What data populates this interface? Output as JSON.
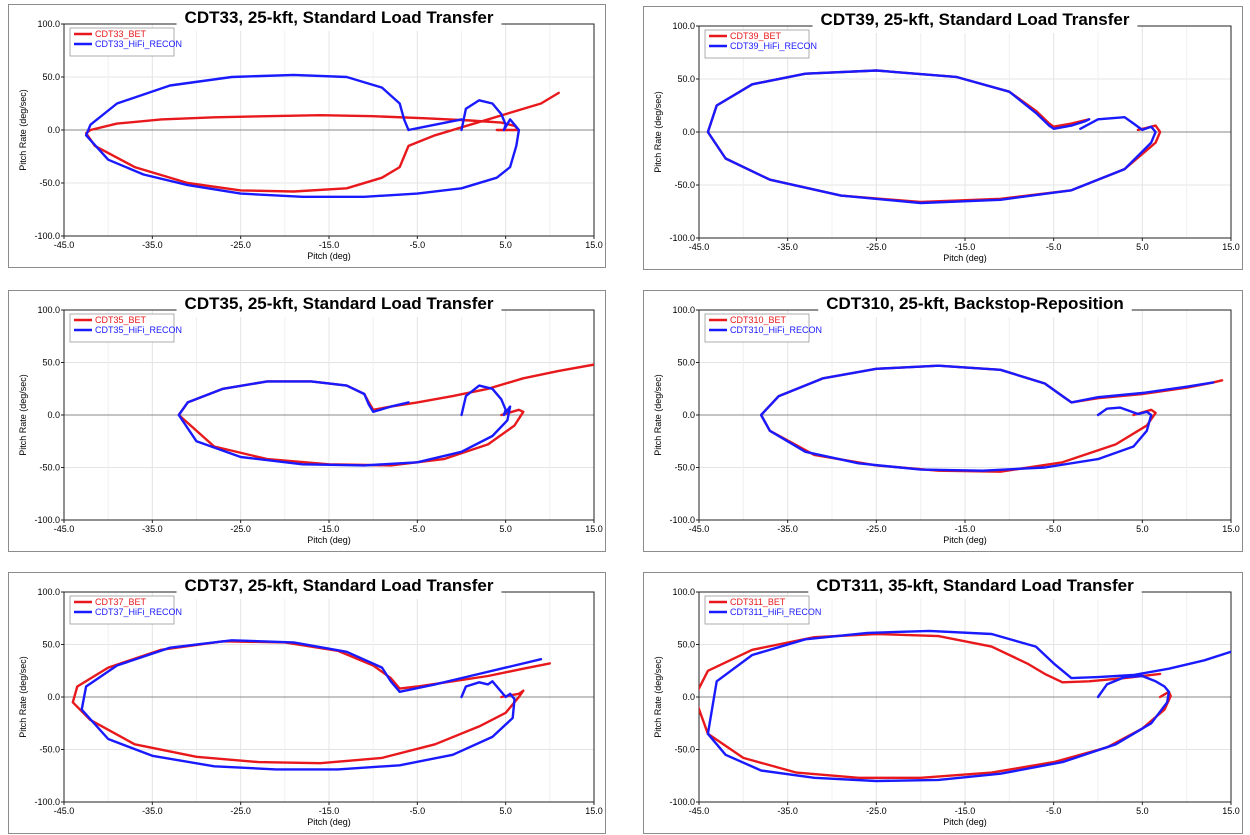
{
  "chart_data": [
    {
      "type": "line",
      "title": "CDT33, 25-kft, Standard Load Transfer",
      "xlabel": "Pitch (deg)",
      "ylabel": "Pitch Rate (deg/sec)",
      "xlim": [
        -45,
        15
      ],
      "ylim": [
        -100,
        100
      ],
      "xticks": [
        "-45.0",
        "-35.0",
        "-25.0",
        "-15.0",
        "-5.0",
        "5.0",
        "15.0"
      ],
      "yticks": [
        "100.0",
        "50.0",
        "0.0",
        "-50.0",
        "-100.0"
      ],
      "grid": true,
      "legend": "top-left",
      "series": [
        {
          "name": "CDT33_BET",
          "color": "#e8191c",
          "x": [
            4,
            6.5,
            6,
            4.5,
            1,
            -4,
            -10,
            -16,
            -22,
            -28,
            -34,
            -39,
            -42,
            -42.5,
            -41.5,
            -37,
            -31,
            -25,
            -19,
            -13,
            -9,
            -7,
            -6.5,
            -6,
            -3,
            1,
            5,
            9,
            11
          ],
          "y": [
            0,
            0,
            4,
            7,
            9,
            11,
            13,
            14,
            13,
            12,
            10,
            6,
            0,
            -3,
            -15,
            -35,
            -50,
            -57,
            -58,
            -55,
            -45,
            -35,
            -25,
            -15,
            -5,
            5,
            15,
            25,
            35
          ]
        },
        {
          "name": "CDT33_HiFi_RECON",
          "color": "#1a1aff",
          "x": [
            0,
            0.5,
            2,
            3.5,
            4.5,
            5,
            4.8,
            5.5,
            6,
            6.5,
            6.2,
            5.5,
            4,
            0,
            -5,
            -11,
            -18,
            -25,
            -31,
            -36,
            -40,
            -42.5,
            -42,
            -39,
            -33,
            -26,
            -19,
            -13,
            -9,
            -7,
            -6.5,
            -6,
            -3,
            0
          ],
          "y": [
            0,
            20,
            28,
            25,
            15,
            5,
            0,
            10,
            5,
            0,
            -15,
            -35,
            -45,
            -55,
            -60,
            -63,
            -63,
            -60,
            -52,
            -42,
            -28,
            -5,
            5,
            25,
            42,
            50,
            52,
            50,
            40,
            25,
            10,
            0,
            5,
            10
          ]
        }
      ]
    },
    {
      "type": "line",
      "title": "CDT39, 25-kft, Standard Load Transfer",
      "xlabel": "Pitch (deg)",
      "ylabel": "Pitch Rate (deg/sec)",
      "xlim": [
        -45,
        15
      ],
      "ylim": [
        -100,
        100
      ],
      "xticks": [
        "-45.0",
        "-35.0",
        "-25.0",
        "-15.0",
        "-5.0",
        "5.0",
        "15.0"
      ],
      "yticks": [
        "100.0",
        "50.0",
        "0.0",
        "-50.0",
        "-100.0"
      ],
      "grid": true,
      "legend": "top-left",
      "series": [
        {
          "name": "CDT39_BET",
          "color": "#e8191c",
          "x": [
            -1,
            -3,
            -5,
            -5.5,
            -7,
            -10,
            -16,
            -25,
            -33,
            -39,
            -43,
            -44,
            -42,
            -37,
            -29,
            -20,
            -11,
            -3,
            3,
            6.5,
            7,
            6.5,
            5.5,
            4.5
          ],
          "y": [
            12,
            8,
            5,
            8,
            20,
            38,
            52,
            58,
            55,
            45,
            25,
            0,
            -25,
            -45,
            -60,
            -66,
            -63,
            -55,
            -35,
            -10,
            0,
            6,
            4,
            2
          ]
        },
        {
          "name": "CDT39_HiFi_RECON",
          "color": "#1a1aff",
          "x": [
            -1,
            -1.5,
            -3,
            -5,
            -5.5,
            -7,
            -10,
            -16,
            -25,
            -33,
            -39,
            -43,
            -44,
            -42,
            -37,
            -29,
            -20,
            -11,
            -3,
            3,
            6,
            6.5,
            6,
            5,
            4,
            3,
            0,
            -2
          ],
          "y": [
            12,
            10,
            6,
            3,
            6,
            18,
            38,
            52,
            58,
            55,
            45,
            25,
            0,
            -25,
            -45,
            -60,
            -67,
            -64,
            -55,
            -35,
            -10,
            0,
            5,
            2,
            8,
            14,
            12,
            3
          ]
        }
      ]
    },
    {
      "type": "line",
      "title": "CDT35, 25-kft, Standard Load Transfer",
      "xlabel": "Pitch (deg)",
      "ylabel": "Pitch Rate (deg/sec)",
      "xlim": [
        -45,
        15
      ],
      "ylim": [
        -100,
        100
      ],
      "xticks": [
        "-45.0",
        "-35.0",
        "-25.0",
        "-15.0",
        "-5.0",
        "5.0",
        "15.0"
      ],
      "yticks": [
        "100.0",
        "50.0",
        "0.0",
        "-50.0",
        "-100.0"
      ],
      "grid": true,
      "legend": "top-left",
      "series": [
        {
          "name": "CDT35_BET",
          "color": "#e8191c",
          "x": [
            4.5,
            6.5,
            7,
            6,
            3,
            -2,
            -8,
            -15,
            -22,
            -28,
            -32,
            -31,
            -27,
            -22,
            -17,
            -13,
            -11,
            -10.5,
            -10,
            -8,
            -5,
            -1,
            3,
            7,
            11,
            15
          ],
          "y": [
            0,
            5,
            3,
            -10,
            -28,
            -42,
            -48,
            -47,
            -42,
            -30,
            0,
            12,
            25,
            32,
            32,
            28,
            20,
            12,
            5,
            8,
            12,
            18,
            25,
            35,
            42,
            48
          ]
        },
        {
          "name": "CDT35_HiFi_RECON",
          "color": "#1a1aff",
          "x": [
            0,
            0.5,
            2,
            3.5,
            4.5,
            5,
            4.8,
            5.5,
            5.2,
            3.5,
            0,
            -5,
            -11,
            -18,
            -25,
            -30,
            -32,
            -31,
            -27,
            -22,
            -17,
            -13,
            -11,
            -10.5,
            -10,
            -8,
            -6
          ],
          "y": [
            0,
            18,
            28,
            25,
            15,
            5,
            0,
            8,
            -5,
            -20,
            -35,
            -45,
            -48,
            -47,
            -40,
            -25,
            0,
            12,
            25,
            32,
            32,
            28,
            20,
            10,
            3,
            8,
            12
          ]
        }
      ]
    },
    {
      "type": "line",
      "title": "CDT310, 25-kft, Backstop-Reposition",
      "xlabel": "Pitch (deg)",
      "ylabel": "Pitch Rate (deg/sec)",
      "xlim": [
        -45,
        15
      ],
      "ylim": [
        -100,
        100
      ],
      "xticks": [
        "-45.0",
        "-35.0",
        "-25.0",
        "-15.0",
        "-5.0",
        "5.0",
        "15.0"
      ],
      "yticks": [
        "100.0",
        "50.0",
        "0.0",
        "-50.0",
        "-100.0"
      ],
      "grid": true,
      "legend": "top-left",
      "series": [
        {
          "name": "CDT310_BET",
          "color": "#e8191c",
          "x": [
            4,
            6,
            6.5,
            5.5,
            2,
            -4,
            -11,
            -18,
            -25,
            -32,
            -37,
            -38,
            -36,
            -31,
            -25,
            -18,
            -11,
            -6,
            -4,
            -3,
            0,
            5,
            10,
            13,
            14
          ],
          "y": [
            0,
            5,
            2,
            -10,
            -28,
            -45,
            -54,
            -53,
            -48,
            -38,
            -15,
            0,
            18,
            35,
            44,
            47,
            43,
            30,
            18,
            12,
            16,
            20,
            26,
            31,
            33
          ]
        },
        {
          "name": "CDT310_HiFi_RECON",
          "color": "#1a1aff",
          "x": [
            0,
            1,
            2.5,
            3.5,
            4.5,
            5.5,
            6,
            5.5,
            4,
            0,
            -6,
            -13,
            -20,
            -27,
            -33,
            -37,
            -38,
            -36,
            -31,
            -25,
            -18,
            -11,
            -6,
            -4,
            -3,
            0,
            5,
            10,
            13
          ],
          "y": [
            0,
            6,
            7,
            4,
            1,
            3,
            0,
            -15,
            -30,
            -42,
            -50,
            -53,
            -52,
            -46,
            -35,
            -15,
            0,
            18,
            35,
            44,
            47,
            43,
            30,
            18,
            12,
            17,
            21,
            27,
            31
          ]
        }
      ]
    },
    {
      "type": "line",
      "title": "CDT37, 25-kft, Standard Load Transfer",
      "xlabel": "Pitch (deg)",
      "ylabel": "Pitch Rate (deg/sec)",
      "xlim": [
        -45,
        15
      ],
      "ylim": [
        -100,
        100
      ],
      "xticks": [
        "-45.0",
        "-35.0",
        "-25.0",
        "-15.0",
        "-5.0",
        "5.0",
        "15.0"
      ],
      "yticks": [
        "100.0",
        "50.0",
        "0.0",
        "-50.0",
        "-100.0"
      ],
      "grid": true,
      "legend": "top-left",
      "series": [
        {
          "name": "CDT37_BET",
          "color": "#e8191c",
          "x": [
            4.5,
            6.5,
            7,
            6.5,
            5,
            2,
            -3,
            -9,
            -16,
            -23,
            -30,
            -37,
            -42,
            -44,
            -43.5,
            -40,
            -34,
            -27,
            -20,
            -14,
            -10,
            -8,
            -7,
            -5,
            -1,
            3,
            7,
            10
          ],
          "y": [
            0,
            3,
            6,
            0,
            -15,
            -28,
            -45,
            -58,
            -63,
            -62,
            -57,
            -45,
            -22,
            -5,
            10,
            28,
            45,
            53,
            52,
            44,
            30,
            18,
            8,
            10,
            15,
            20,
            27,
            32
          ]
        },
        {
          "name": "CDT37_HiFi_RECON",
          "color": "#1a1aff",
          "x": [
            0,
            0.5,
            2,
            3,
            3.5,
            5,
            5.5,
            6,
            5.8,
            3.5,
            -1,
            -7,
            -14,
            -21,
            -28,
            -35,
            -40,
            -43,
            -42.5,
            -39,
            -33,
            -26,
            -19,
            -13,
            -9,
            -8,
            -7,
            -3,
            1,
            5,
            9
          ],
          "y": [
            0,
            10,
            14,
            12,
            15,
            0,
            3,
            -2,
            -20,
            -38,
            -55,
            -65,
            -69,
            -69,
            -66,
            -56,
            -40,
            -12,
            10,
            30,
            47,
            54,
            52,
            43,
            28,
            15,
            5,
            12,
            20,
            28,
            36
          ]
        }
      ]
    },
    {
      "type": "line",
      "title": "CDT311, 35-kft, Standard Load Transfer",
      "xlabel": "Pitch (deg)",
      "ylabel": "Pitch Rate (deg/sec)",
      "xlim": [
        -45,
        15
      ],
      "ylim": [
        -100,
        100
      ],
      "xticks": [
        "-45.0",
        "-35.0",
        "-25.0",
        "-15.0",
        "-5.0",
        "5.0",
        "15.0"
      ],
      "yticks": [
        "100.0",
        "50.0",
        "0.0",
        "-50.0",
        "-100.0"
      ],
      "grid": true,
      "legend": "top-left",
      "series": [
        {
          "name": "CDT311_BET",
          "color": "#e8191c",
          "x": [
            7,
            8,
            8.2,
            7.5,
            5,
            1,
            -5,
            -12,
            -20,
            -27,
            -34,
            -40,
            -44,
            -45.5,
            -44,
            -39,
            -32,
            -25,
            -18,
            -12,
            -8,
            -6,
            -4,
            -1,
            3,
            7
          ],
          "y": [
            0,
            5,
            1,
            -12,
            -30,
            -48,
            -62,
            -72,
            -77,
            -77,
            -72,
            -58,
            -35,
            0,
            25,
            45,
            57,
            60,
            58,
            48,
            32,
            22,
            14,
            15,
            18,
            22
          ]
        },
        {
          "name": "CDT311_HiFi_RECON",
          "color": "#1a1aff",
          "x": [
            0,
            1,
            3,
            5,
            6.5,
            7.5,
            8,
            7.8,
            6,
            2,
            -4,
            -11,
            -18,
            -25,
            -32,
            -38,
            -42,
            -44,
            -43,
            -39,
            -33,
            -26,
            -19,
            -12,
            -7,
            -5,
            -3,
            0,
            4,
            8,
            12,
            15
          ],
          "y": [
            0,
            12,
            19,
            20,
            15,
            10,
            5,
            -5,
            -25,
            -45,
            -62,
            -73,
            -79,
            -80,
            -77,
            -70,
            -55,
            -35,
            15,
            40,
            55,
            61,
            63,
            60,
            48,
            32,
            18,
            19,
            21,
            27,
            35,
            43
          ]
        }
      ]
    }
  ]
}
